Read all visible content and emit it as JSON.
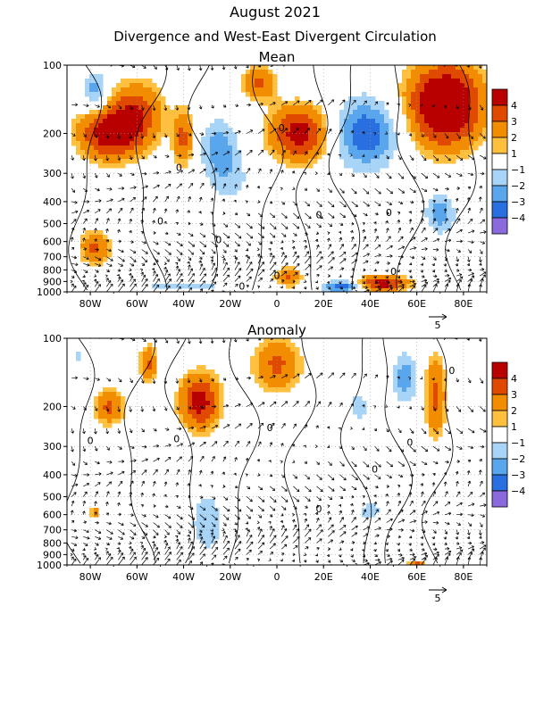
{
  "title": "August 2021",
  "subtitle": "Divergence and West-East Divergent Circulation",
  "reference_vector_label": "5",
  "colorbar": {
    "labels": [
      "4",
      "3",
      "2",
      "1",
      "−1",
      "−2",
      "−3",
      "−4"
    ],
    "colors": [
      "#b80000",
      "#e04a00",
      "#f28c00",
      "#ffc040",
      "#ffffff",
      "#a8d4f7",
      "#5aa6ec",
      "#2a6fe0",
      "#8a6adc"
    ]
  },
  "chart_data": [
    {
      "type": "heatmap",
      "title": "Mean",
      "x_ticks": [
        "80W",
        "60W",
        "40W",
        "20W",
        "0",
        "20E",
        "40E",
        "60E",
        "80E"
      ],
      "x_tick_values": [
        -80,
        -60,
        -40,
        -20,
        0,
        20,
        40,
        60,
        80
      ],
      "xlim": [
        -90,
        90
      ],
      "y_ticks": [
        "100",
        "200",
        "300",
        "400",
        "500",
        "600",
        "700",
        "800",
        "900",
        "1000"
      ],
      "y_tick_values": [
        100,
        200,
        300,
        400,
        500,
        600,
        700,
        800,
        900,
        1000
      ],
      "ylim": [
        1000,
        100
      ],
      "y_scale": "log",
      "contour_labels": [
        {
          "text": "0",
          "x": 2,
          "p": 190
        },
        {
          "text": "0",
          "x": -42,
          "p": 285
        },
        {
          "text": "0",
          "x": -50,
          "p": 490
        },
        {
          "text": "0",
          "x": 18,
          "p": 460
        },
        {
          "text": "0",
          "x": 48,
          "p": 450
        },
        {
          "text": "0",
          "x": -25,
          "p": 595
        },
        {
          "text": "0",
          "x": 0,
          "p": 855
        },
        {
          "text": "0",
          "x": 50,
          "p": 820
        },
        {
          "text": "0",
          "x": -15,
          "p": 950
        }
      ],
      "blobs": [
        {
          "x": -72,
          "p": 200,
          "rx": 14,
          "rp": 0.28,
          "v": 3
        },
        {
          "x": -60,
          "p": 160,
          "rx": 12,
          "rp": 0.35,
          "v": 2
        },
        {
          "x": -40,
          "p": 210,
          "rx": 5,
          "rp": 0.3,
          "v": 2
        },
        {
          "x": -25,
          "p": 230,
          "rx": 8,
          "rp": 0.28,
          "v": -2
        },
        {
          "x": 10,
          "p": 200,
          "rx": 14,
          "rp": 0.3,
          "v": 3
        },
        {
          "x": -8,
          "p": 120,
          "rx": 8,
          "rp": 0.18,
          "v": 2
        },
        {
          "x": 38,
          "p": 200,
          "rx": 14,
          "rp": 0.35,
          "v": -3
        },
        {
          "x": 72,
          "p": 150,
          "rx": 17,
          "rp": 0.45,
          "v": 4
        },
        {
          "x": -78,
          "p": 130,
          "rx": 5,
          "rp": 0.2,
          "v": -2
        },
        {
          "x": -20,
          "p": 320,
          "rx": 9,
          "rp": 0.25,
          "v": -1
        },
        {
          "x": -78,
          "p": 640,
          "rx": 7,
          "rp": 0.18,
          "v": 2
        },
        {
          "x": 70,
          "p": 450,
          "rx": 6,
          "rp": 0.2,
          "v": -2
        },
        {
          "x": 45,
          "p": 920,
          "rx": 12,
          "rp": 0.08,
          "v": 3
        },
        {
          "x": 28,
          "p": 950,
          "rx": 8,
          "rp": 0.06,
          "v": -3
        },
        {
          "x": 5,
          "p": 860,
          "rx": 6,
          "rp": 0.1,
          "v": 2
        },
        {
          "x": -40,
          "p": 950,
          "rx": 25,
          "rp": 0.05,
          "v": -1
        }
      ]
    },
    {
      "type": "heatmap",
      "title": "Anomaly",
      "x_ticks": [
        "80W",
        "60W",
        "40W",
        "20W",
        "0",
        "20E",
        "40E",
        "60E",
        "80E"
      ],
      "x_tick_values": [
        -80,
        -60,
        -40,
        -20,
        0,
        20,
        40,
        60,
        80
      ],
      "xlim": [
        -90,
        90
      ],
      "y_ticks": [
        "100",
        "200",
        "300",
        "400",
        "500",
        "600",
        "700",
        "800",
        "900",
        "1000"
      ],
      "y_tick_values": [
        100,
        200,
        300,
        400,
        500,
        600,
        700,
        800,
        900,
        1000
      ],
      "ylim": [
        1000,
        100
      ],
      "y_scale": "log",
      "contour_labels": [
        {
          "text": "0",
          "x": 75,
          "p": 140
        },
        {
          "text": "0",
          "x": -80,
          "p": 285
        },
        {
          "text": "0",
          "x": -43,
          "p": 280
        },
        {
          "text": "0",
          "x": -3,
          "p": 250
        },
        {
          "text": "0",
          "x": 42,
          "p": 380
        },
        {
          "text": "0",
          "x": 57,
          "p": 290
        },
        {
          "text": "0",
          "x": 18,
          "p": 570
        }
      ],
      "blobs": [
        {
          "x": -72,
          "p": 200,
          "rx": 7,
          "rp": 0.2,
          "v": 2
        },
        {
          "x": -33,
          "p": 190,
          "rx": 9,
          "rp": 0.3,
          "v": 3
        },
        {
          "x": 0,
          "p": 130,
          "rx": 11,
          "rp": 0.3,
          "v": 2
        },
        {
          "x": -55,
          "p": 130,
          "rx": 4,
          "rp": 0.2,
          "v": 2
        },
        {
          "x": 68,
          "p": 180,
          "rx": 5,
          "rp": 0.45,
          "v": 2
        },
        {
          "x": 55,
          "p": 150,
          "rx": 5,
          "rp": 0.25,
          "v": -2
        },
        {
          "x": -30,
          "p": 650,
          "rx": 10,
          "rp": 0.45,
          "v": -1
        },
        {
          "x": 40,
          "p": 580,
          "rx": 6,
          "rp": 0.12,
          "v": -1
        },
        {
          "x": 35,
          "p": 200,
          "rx": 5,
          "rp": 0.2,
          "v": -1
        },
        {
          "x": -85,
          "p": 120,
          "rx": 3,
          "rp": 0.12,
          "v": -1
        },
        {
          "x": -78,
          "p": 590,
          "rx": 2,
          "rp": 0.05,
          "v": 2
        },
        {
          "x": 60,
          "p": 990,
          "rx": 4,
          "rp": 0.03,
          "v": 2
        }
      ]
    }
  ]
}
